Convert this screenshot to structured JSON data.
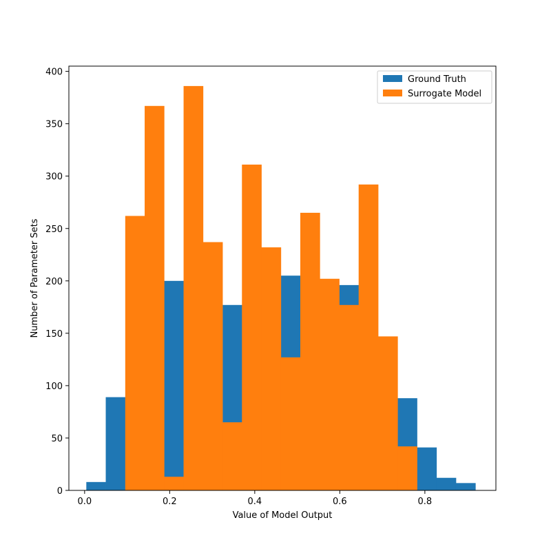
{
  "chart_data": {
    "type": "bar",
    "title": "",
    "xlabel": "Value of Model Output",
    "ylabel": "Number of Parameter Sets",
    "xlim": [
      -0.037,
      0.967
    ],
    "ylim": [
      0,
      405
    ],
    "xticks": [
      0.0,
      0.2,
      0.4,
      0.6,
      0.8
    ],
    "xtick_labels": [
      "0.0",
      "0.2",
      "0.4",
      "0.6",
      "0.8"
    ],
    "yticks": [
      0,
      50,
      100,
      150,
      200,
      250,
      300,
      350,
      400
    ],
    "ytick_labels": [
      "0",
      "50",
      "100",
      "150",
      "200",
      "250",
      "300",
      "350",
      "400"
    ],
    "grid": false,
    "legend_position": "top-right",
    "series": [
      {
        "name": "Ground Truth",
        "color": "#1f77b4",
        "bin_edges": [
          0.004,
          0.0497,
          0.0955,
          0.1412,
          0.1869,
          0.2327,
          0.2784,
          0.3242,
          0.3699,
          0.4156,
          0.4614,
          0.5071,
          0.5529,
          0.5986,
          0.6443,
          0.6901,
          0.7358,
          0.7815,
          0.8273,
          0.873,
          0.9188
        ],
        "values": [
          8,
          89,
          0,
          0,
          200,
          0,
          0,
          177,
          0,
          0,
          205,
          0,
          0,
          196,
          0,
          0,
          88,
          41,
          12,
          7
        ]
      },
      {
        "name": "Surrogate Model",
        "color": "#ff7f0e",
        "bin_edges": [
          0.0955,
          0.1412,
          0.1869,
          0.2327,
          0.2784,
          0.3242,
          0.3699,
          0.4156,
          0.4614,
          0.5071,
          0.5529,
          0.5986,
          0.6443,
          0.6901,
          0.7358,
          0.7815
        ],
        "values": [
          262,
          367,
          13,
          386,
          237,
          65,
          311,
          232,
          127,
          265,
          202,
          177,
          292,
          147,
          42
        ]
      }
    ]
  }
}
